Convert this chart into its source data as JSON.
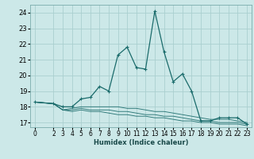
{
  "xlabel": "Humidex (Indice chaleur)",
  "ylabel": "",
  "background_color": "#cce8e8",
  "grid_color": "#aacfcf",
  "line_color": "#1a6b6b",
  "xlim": [
    -0.5,
    23.5
  ],
  "ylim": [
    16.7,
    24.5
  ],
  "yticks": [
    17,
    18,
    19,
    20,
    21,
    22,
    23,
    24
  ],
  "xticks": [
    0,
    2,
    3,
    4,
    5,
    6,
    7,
    8,
    9,
    10,
    11,
    12,
    13,
    14,
    15,
    16,
    17,
    18,
    19,
    20,
    21,
    22,
    23
  ],
  "series": [
    {
      "x": [
        0,
        2,
        3,
        4,
        5,
        6,
        7,
        8,
        9,
        10,
        11,
        12,
        13,
        14,
        15,
        16,
        17,
        18,
        19,
        20,
        21,
        22,
        23
      ],
      "y": [
        18.3,
        18.2,
        18.0,
        18.0,
        18.5,
        18.6,
        19.3,
        19.0,
        21.3,
        21.8,
        20.5,
        20.4,
        24.1,
        21.5,
        19.6,
        20.1,
        19.0,
        17.1,
        17.1,
        17.3,
        17.3,
        17.3,
        16.9
      ],
      "marker": true
    },
    {
      "x": [
        0,
        2,
        3,
        4,
        5,
        6,
        7,
        8,
        9,
        10,
        11,
        12,
        13,
        14,
        15,
        16,
        17,
        18,
        19,
        20,
        21,
        22,
        23
      ],
      "y": [
        18.3,
        18.2,
        17.8,
        17.9,
        18.0,
        18.0,
        18.0,
        18.0,
        18.0,
        17.9,
        17.9,
        17.8,
        17.7,
        17.7,
        17.6,
        17.5,
        17.4,
        17.3,
        17.2,
        17.2,
        17.2,
        17.1,
        17.0
      ],
      "marker": false
    },
    {
      "x": [
        0,
        2,
        3,
        4,
        5,
        6,
        7,
        8,
        9,
        10,
        11,
        12,
        13,
        14,
        15,
        16,
        17,
        18,
        19,
        20,
        21,
        22,
        23
      ],
      "y": [
        18.3,
        18.2,
        17.8,
        17.8,
        17.9,
        17.8,
        17.8,
        17.8,
        17.7,
        17.7,
        17.6,
        17.5,
        17.5,
        17.4,
        17.4,
        17.3,
        17.2,
        17.1,
        17.1,
        17.0,
        17.0,
        17.0,
        16.9
      ],
      "marker": false
    },
    {
      "x": [
        0,
        2,
        3,
        4,
        5,
        6,
        7,
        8,
        9,
        10,
        11,
        12,
        13,
        14,
        15,
        16,
        17,
        18,
        19,
        20,
        21,
        22,
        23
      ],
      "y": [
        18.3,
        18.2,
        17.8,
        17.7,
        17.8,
        17.7,
        17.7,
        17.6,
        17.5,
        17.5,
        17.4,
        17.4,
        17.3,
        17.3,
        17.2,
        17.1,
        17.1,
        17.0,
        17.0,
        16.9,
        16.9,
        16.9,
        16.8
      ],
      "marker": false
    }
  ]
}
